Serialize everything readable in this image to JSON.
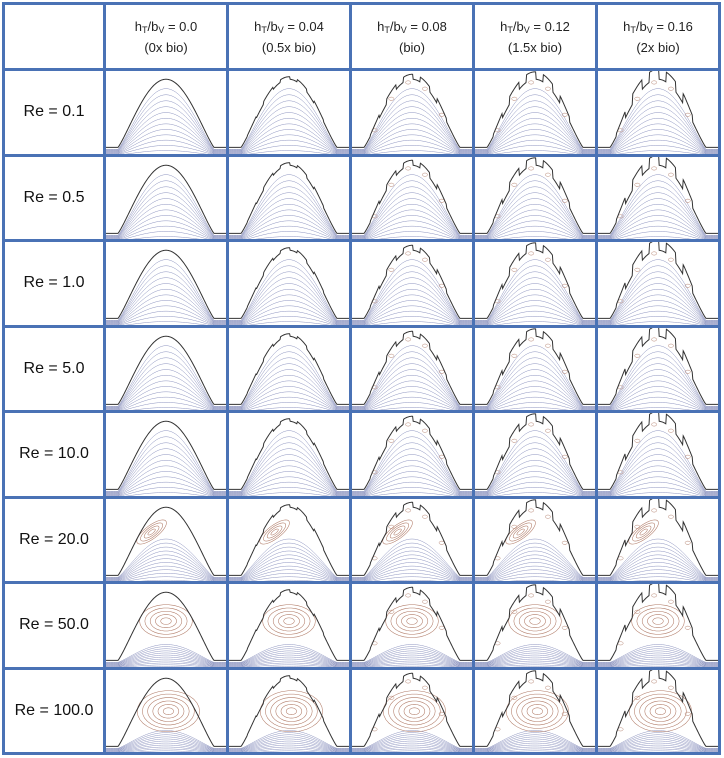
{
  "columns": [
    {
      "sym_h": "h",
      "sub_h": "T",
      "sym_b": "b",
      "sub_b": "V",
      "value": "= 0.0",
      "note": "(0x bio)",
      "hr": 0.0
    },
    {
      "sym_h": "h",
      "sub_h": "T",
      "sym_b": "b",
      "sub_b": "V",
      "value": "= 0.04",
      "note": "(0.5x bio)",
      "hr": 0.04
    },
    {
      "sym_h": "h",
      "sub_h": "T",
      "sym_b": "b",
      "sub_b": "V",
      "value": "= 0.08",
      "note": "(bio)",
      "hr": 0.08
    },
    {
      "sym_h": "h",
      "sub_h": "T",
      "sym_b": "b",
      "sub_b": "V",
      "value": "= 0.12",
      "note": "(1.5x bio)",
      "hr": 0.12
    },
    {
      "sym_h": "h",
      "sub_h": "T",
      "sym_b": "b",
      "sub_b": "V",
      "value": "= 0.16",
      "note": "(2x bio)",
      "hr": 0.16
    }
  ],
  "rows": [
    {
      "label": "Re = 0.1",
      "re": 0.1
    },
    {
      "label": "Re = 0.5",
      "re": 0.5
    },
    {
      "label": "Re = 1.0",
      "re": 1.0
    },
    {
      "label": "Re = 5.0",
      "re": 5.0
    },
    {
      "label": "Re = 10.0",
      "re": 10.0
    },
    {
      "label": "Re = 20.0",
      "re": 20.0
    },
    {
      "label": "Re = 50.0",
      "re": 50.0
    },
    {
      "label": "Re = 100.0",
      "re": 100.0
    }
  ],
  "colors": {
    "grid_border": "#4a72b5",
    "streamline": "#8c93bf",
    "vortex": "#b07a66",
    "outline": "#333333"
  }
}
